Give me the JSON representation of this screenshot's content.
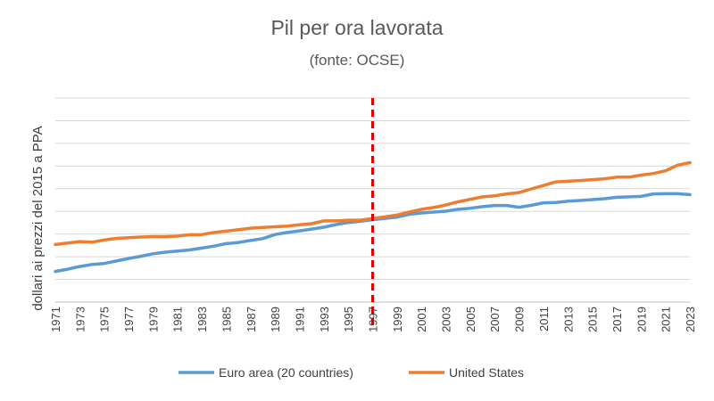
{
  "chart_data": {
    "type": "line",
    "title": "Pil per ora lavorata",
    "subtitle": "(fonte: OCSE)",
    "ylabel": "dollari ai prezzi del 2015 a PPA",
    "xlabel": "",
    "x": [
      1971,
      1972,
      1973,
      1974,
      1975,
      1976,
      1977,
      1978,
      1979,
      1980,
      1981,
      1982,
      1983,
      1984,
      1985,
      1986,
      1987,
      1988,
      1989,
      1990,
      1991,
      1992,
      1993,
      1994,
      1995,
      1996,
      1997,
      1998,
      1999,
      2000,
      2001,
      2002,
      2003,
      2004,
      2005,
      2006,
      2007,
      2008,
      2009,
      2010,
      2011,
      2012,
      2013,
      2014,
      2015,
      2016,
      2017,
      2018,
      2019,
      2020,
      2021,
      2022,
      2023
    ],
    "x_tick_labels": [
      "1971",
      "1973",
      "1975",
      "1977",
      "1979",
      "1981",
      "1983",
      "1985",
      "1987",
      "1989",
      "1991",
      "1993",
      "1995",
      "1997",
      "1999",
      "2001",
      "2003",
      "2005",
      "2007",
      "2009",
      "2011",
      "2013",
      "2015",
      "2017",
      "2019",
      "2021",
      "2023"
    ],
    "y_gridlines": 9,
    "y_tick_labels_shown": false,
    "grid": true,
    "legend_position": "bottom",
    "marker_line": {
      "x": 1997,
      "color": "#e00000",
      "style": "dashed"
    },
    "series": [
      {
        "name": "Euro area (20 countries)",
        "color": "#5b9bd5",
        "values": [
          1.35,
          1.45,
          1.57,
          1.66,
          1.7,
          1.81,
          1.92,
          2.02,
          2.13,
          2.2,
          2.25,
          2.3,
          2.38,
          2.47,
          2.58,
          2.63,
          2.72,
          2.8,
          2.98,
          3.07,
          3.14,
          3.22,
          3.3,
          3.42,
          3.51,
          3.57,
          3.63,
          3.69,
          3.75,
          3.87,
          3.93,
          3.97,
          4.01,
          4.09,
          4.14,
          4.21,
          4.26,
          4.26,
          4.18,
          4.27,
          4.38,
          4.39,
          4.45,
          4.48,
          4.52,
          4.56,
          4.62,
          4.64,
          4.66,
          4.77,
          4.78,
          4.78,
          4.74
        ]
      },
      {
        "name": "United States",
        "color": "#ed7d31",
        "values": [
          2.54,
          2.6,
          2.67,
          2.64,
          2.74,
          2.81,
          2.84,
          2.87,
          2.89,
          2.89,
          2.91,
          2.97,
          2.98,
          3.07,
          3.13,
          3.19,
          3.26,
          3.29,
          3.32,
          3.35,
          3.41,
          3.46,
          3.58,
          3.58,
          3.61,
          3.61,
          3.69,
          3.76,
          3.84,
          3.97,
          4.09,
          4.17,
          4.28,
          4.42,
          4.53,
          4.64,
          4.69,
          4.77,
          4.83,
          4.99,
          5.14,
          5.3,
          5.33,
          5.36,
          5.4,
          5.44,
          5.51,
          5.51,
          5.6,
          5.67,
          5.79,
          6.04,
          6.15
        ]
      }
    ]
  }
}
